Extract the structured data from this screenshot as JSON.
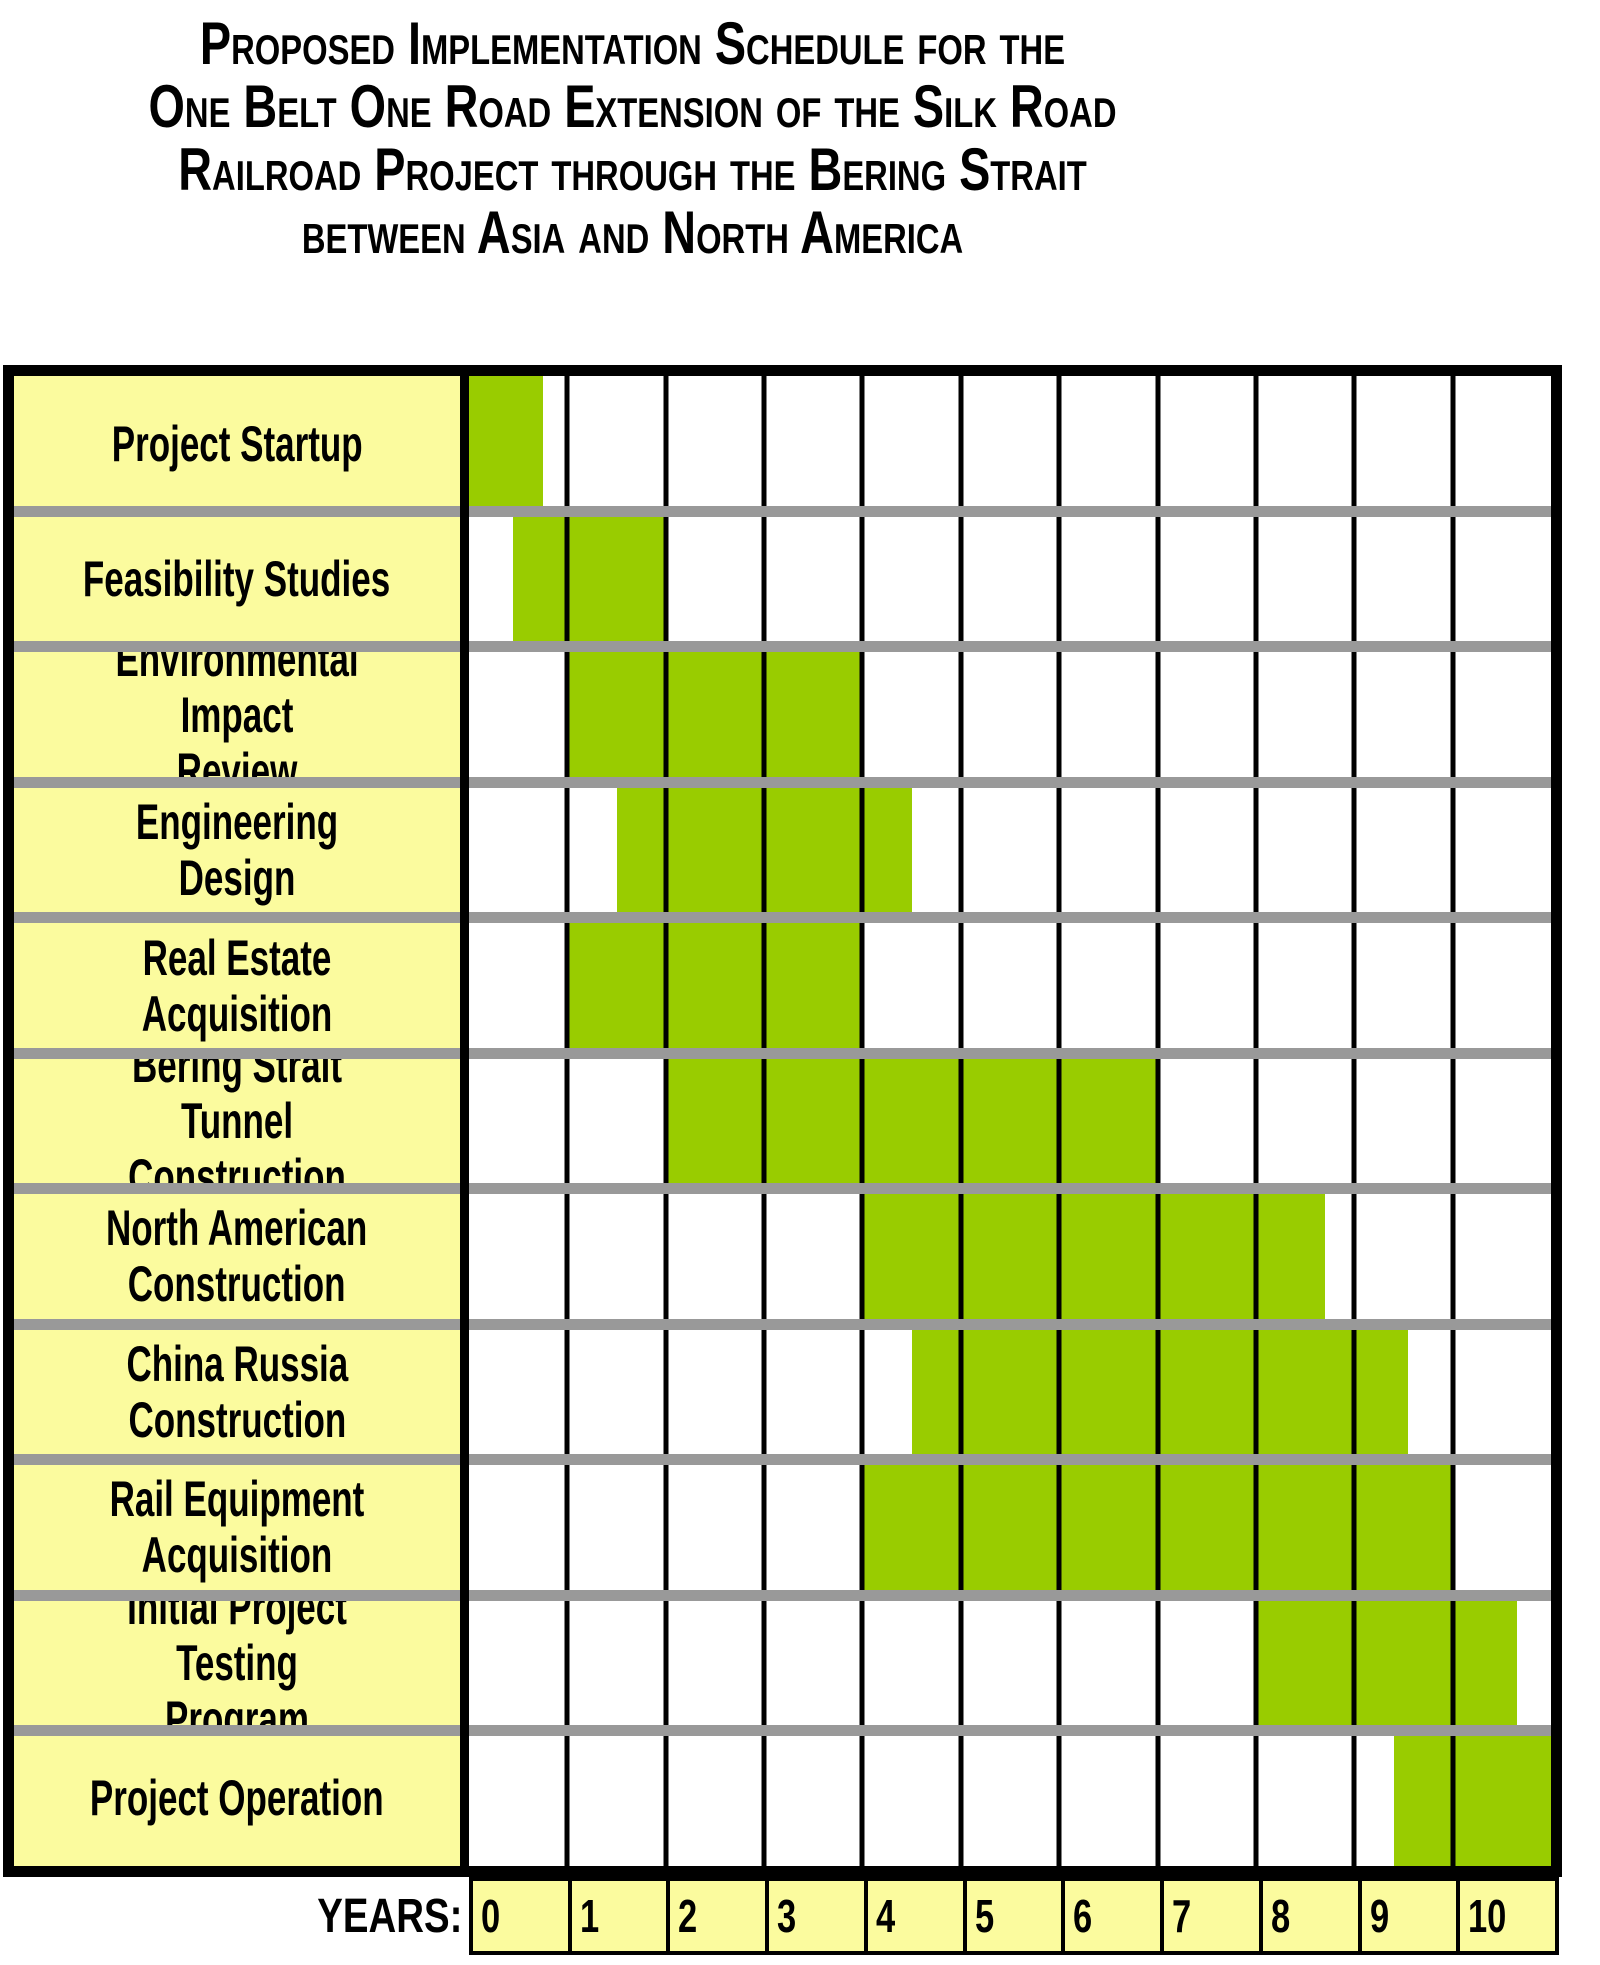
{
  "title": {
    "lines": [
      "Proposed Implementation Schedule for the",
      "One Belt One Road Extension of the Silk Road",
      "Railroad Project through the Bering Strait",
      "between Asia and North America"
    ]
  },
  "chart_data": {
    "type": "bar",
    "subtype": "gantt",
    "title": "Proposed Implementation Schedule for the One Belt One Road Extension of the Silk Road Railroad Project through the Bering Strait between Asia and North America",
    "xlabel": "YEARS:",
    "x_ticks": [
      "0",
      "1",
      "2",
      "3",
      "4",
      "5",
      "6",
      "7",
      "8",
      "9",
      "10"
    ],
    "x_range": [
      0,
      11
    ],
    "grid": true,
    "tasks": [
      {
        "name": "Project Startup",
        "label_lines": [
          "Project Startup"
        ],
        "start_year": 0,
        "end_year": 0.75
      },
      {
        "name": "Feasibility Studies",
        "label_lines": [
          "Feasibility Studies"
        ],
        "start_year": 0.45,
        "end_year": 2
      },
      {
        "name": "Environmental Impact Review",
        "label_lines": [
          "Environmental Impact",
          "Review"
        ],
        "start_year": 1,
        "end_year": 4
      },
      {
        "name": "Engineering Design",
        "label_lines": [
          "Engineering Design"
        ],
        "start_year": 1.5,
        "end_year": 4.5
      },
      {
        "name": "Real Estate Acquisition",
        "label_lines": [
          "Real Estate Acquisition"
        ],
        "start_year": 1,
        "end_year": 4
      },
      {
        "name": "Bering Strait Tunnel Construction",
        "label_lines": [
          "Bering Strait Tunnel",
          "Construction"
        ],
        "start_year": 2,
        "end_year": 7
      },
      {
        "name": "North American Construction",
        "label_lines": [
          "North American",
          "Construction"
        ],
        "start_year": 4,
        "end_year": 8.7
      },
      {
        "name": "China Russia Construction",
        "label_lines": [
          "China Russia",
          "Construction"
        ],
        "start_year": 4.5,
        "end_year": 9.55
      },
      {
        "name": "Rail Equipment Acquisition",
        "label_lines": [
          "Rail Equipment",
          "Acquisition"
        ],
        "start_year": 4,
        "end_year": 10
      },
      {
        "name": "Initial Project Testing Program",
        "label_lines": [
          "Initial Project Testing",
          "Program"
        ],
        "start_year": 8,
        "end_year": 10.65
      },
      {
        "name": "Project Operation",
        "label_lines": [
          "Project Operation"
        ],
        "start_year": 9.4,
        "end_year": 11
      }
    ],
    "colors": {
      "bar": "#99CC00",
      "task_label_background": "#FBFB9E",
      "year_cell_background": "#FBFB9E",
      "row_separator": "#999999",
      "grid_line": "#000000",
      "border": "#000000",
      "background": "#FFFFFF",
      "text": "#000000"
    }
  }
}
